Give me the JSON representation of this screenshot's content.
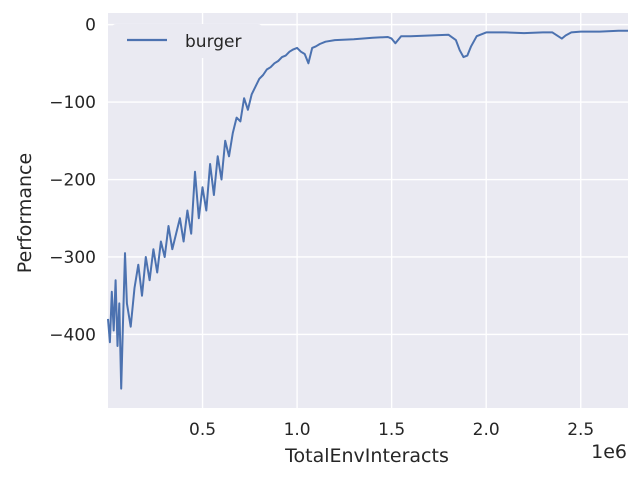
{
  "chart_data": {
    "type": "line",
    "xlabel": "TotalEnvInteracts",
    "ylabel": "Performance",
    "x_offset_label": "1e6",
    "xlim": [
      0.0,
      2.75
    ],
    "ylim": [
      -495,
      15
    ],
    "x_ticks": [
      0.5,
      1.0,
      1.5,
      2.0,
      2.5
    ],
    "x_tick_labels": [
      "0.5",
      "1.0",
      "1.5",
      "2.0",
      "2.5"
    ],
    "y_ticks": [
      0,
      -100,
      -200,
      -300,
      -400
    ],
    "y_tick_labels": [
      "0",
      "−100",
      "−200",
      "−300",
      "−400"
    ],
    "grid": true,
    "legend_position": "top-left",
    "colors": {
      "plot_bg": "#eaeaf2",
      "grid": "#ffffff",
      "line": "#4c72b0"
    },
    "series": [
      {
        "name": "burger",
        "color": "#4c72b0",
        "x": [
          0.0,
          0.01,
          0.02,
          0.03,
          0.04,
          0.05,
          0.06,
          0.07,
          0.08,
          0.09,
          0.1,
          0.12,
          0.14,
          0.16,
          0.18,
          0.2,
          0.22,
          0.24,
          0.26,
          0.28,
          0.3,
          0.32,
          0.34,
          0.36,
          0.38,
          0.4,
          0.42,
          0.44,
          0.46,
          0.48,
          0.5,
          0.52,
          0.54,
          0.56,
          0.58,
          0.6,
          0.62,
          0.64,
          0.66,
          0.68,
          0.7,
          0.72,
          0.74,
          0.76,
          0.78,
          0.8,
          0.82,
          0.84,
          0.86,
          0.88,
          0.9,
          0.92,
          0.94,
          0.96,
          0.98,
          1.0,
          1.02,
          1.04,
          1.06,
          1.08,
          1.1,
          1.12,
          1.15,
          1.2,
          1.3,
          1.4,
          1.48,
          1.5,
          1.52,
          1.55,
          1.6,
          1.7,
          1.8,
          1.84,
          1.86,
          1.88,
          1.9,
          1.92,
          1.95,
          2.0,
          2.1,
          2.2,
          2.3,
          2.35,
          2.4,
          2.42,
          2.45,
          2.5,
          2.6,
          2.7,
          2.75
        ],
        "y": [
          -380,
          -410,
          -345,
          -395,
          -330,
          -415,
          -360,
          -470,
          -380,
          -295,
          -360,
          -390,
          -340,
          -310,
          -350,
          -300,
          -330,
          -290,
          -320,
          -280,
          -300,
          -260,
          -290,
          -270,
          -250,
          -280,
          -240,
          -270,
          -190,
          -250,
          -210,
          -240,
          -180,
          -220,
          -170,
          -200,
          -150,
          -170,
          -140,
          -120,
          -125,
          -95,
          -110,
          -90,
          -80,
          -70,
          -65,
          -58,
          -55,
          -50,
          -47,
          -42,
          -40,
          -35,
          -32,
          -30,
          -35,
          -38,
          -50,
          -30,
          -28,
          -25,
          -22,
          -20,
          -19,
          -17,
          -16,
          -18,
          -24,
          -15,
          -15,
          -14,
          -13,
          -20,
          -33,
          -42,
          -40,
          -28,
          -15,
          -10,
          -10,
          -11,
          -10,
          -10,
          -18,
          -14,
          -10,
          -9,
          -9,
          -8,
          -8
        ]
      }
    ]
  }
}
